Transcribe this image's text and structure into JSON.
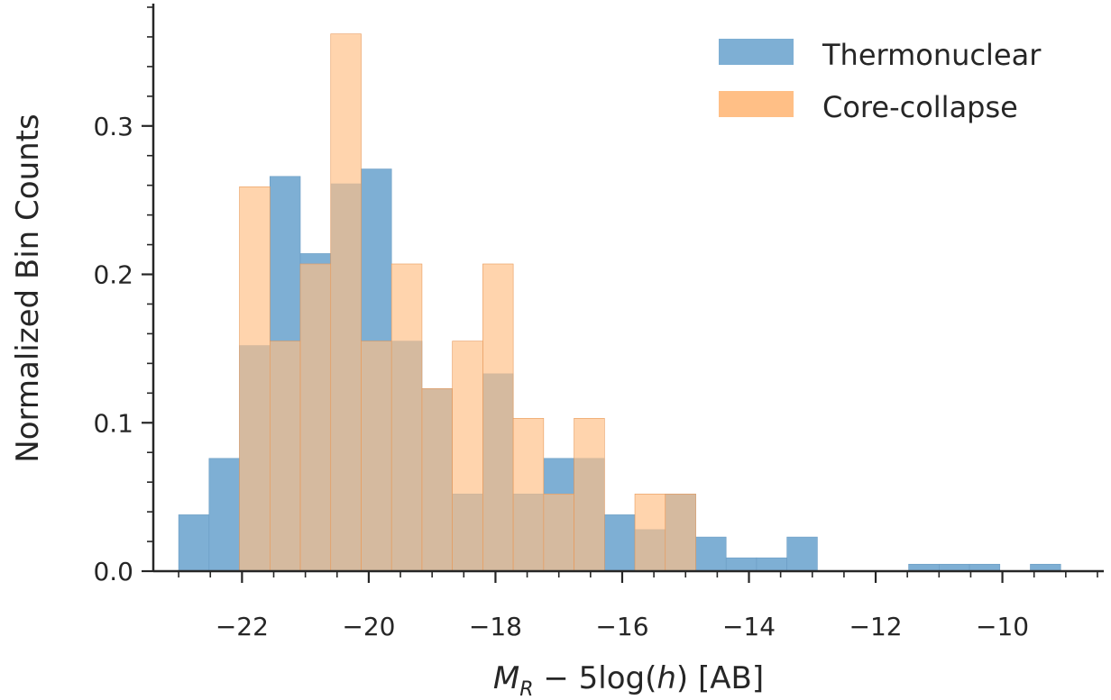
{
  "chart_data": {
    "type": "bar",
    "subtype": "overlapping-histogram",
    "xlabel_html": "<tspan font-style=\"italic\">M</tspan><tspan font-style=\"italic\" font-size=\"22\" dy=\"8\">R</tspan><tspan dy=\"-8\"> − 5log(</tspan><tspan font-style=\"italic\">h</tspan><tspan>) [AB]</tspan>",
    "ylabel": "Normalized Bin Counts",
    "xlim": [
      -23.4,
      -8.4
    ],
    "ylim": [
      0,
      0.38
    ],
    "x_ticks": [
      -22,
      -20,
      -18,
      -16,
      -14,
      -12,
      -10
    ],
    "x_tick_labels": [
      "−22",
      "−20",
      "−18",
      "−16",
      "−14",
      "−12",
      "−10"
    ],
    "y_ticks": [
      0.0,
      0.1,
      0.2,
      0.3
    ],
    "y_tick_labels": [
      "0.0",
      "0.1",
      "0.2",
      "0.3"
    ],
    "legend_position": "top-right",
    "series": [
      {
        "name": "Thermonuclear",
        "color": "#7eafd4",
        "bin_edges": [
          -23.0,
          -22.52,
          -22.04,
          -21.56,
          -21.08,
          -20.6,
          -20.12,
          -19.64,
          -19.16,
          -18.68,
          -18.2,
          -17.72,
          -17.24,
          -16.76,
          -16.28,
          -15.8,
          -15.32,
          -14.84,
          -14.36,
          -13.88,
          -13.4,
          -12.92,
          -12.44,
          -11.96,
          -11.48,
          -11.0,
          -10.52,
          -10.04,
          -9.56,
          -9.08
        ],
        "values": [
          0.038,
          0.076,
          0.152,
          0.266,
          0.214,
          0.261,
          0.271,
          0.155,
          0.123,
          0.052,
          0.133,
          0.052,
          0.076,
          0.076,
          0.038,
          0.028,
          0.052,
          0.023,
          0.009,
          0.009,
          0.023,
          0.0,
          0.0,
          0.0,
          0.0047,
          0.0047,
          0.0047,
          0.0,
          0.0047
        ]
      },
      {
        "name": "Core-collapse",
        "color": "#ffbf86",
        "bin_edges": [
          -22.04,
          -21.56,
          -21.08,
          -20.6,
          -20.12,
          -19.64,
          -19.16,
          -18.68,
          -18.2,
          -17.72,
          -17.24,
          -16.76,
          -16.28,
          -15.8,
          -15.32,
          -14.84
        ],
        "values": [
          0.259,
          0.155,
          0.207,
          0.362,
          0.155,
          0.207,
          0.123,
          0.155,
          0.207,
          0.103,
          0.052,
          0.103,
          0.0,
          0.052,
          0.052
        ]
      }
    ]
  }
}
